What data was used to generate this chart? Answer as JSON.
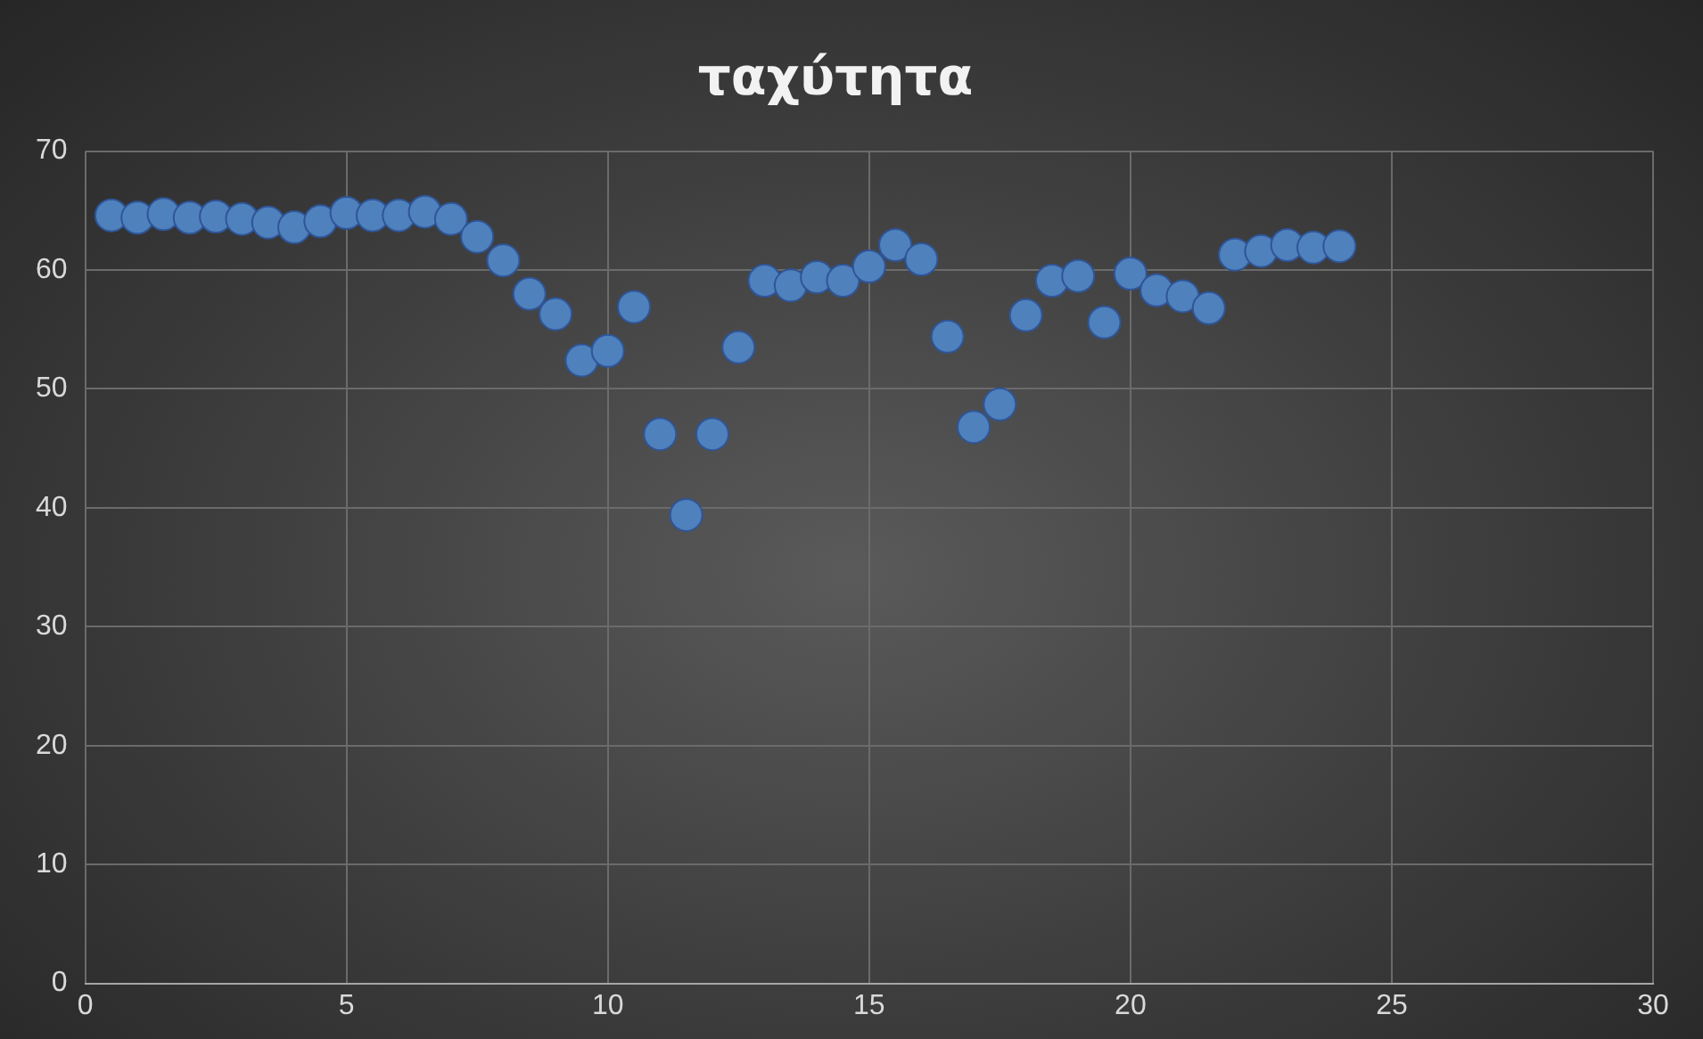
{
  "chart_data": {
    "type": "scatter",
    "title": "ταχύτητα",
    "x": [
      0.5,
      1,
      1.5,
      2,
      2.5,
      3,
      3.5,
      4,
      4.5,
      5,
      5.5,
      6,
      6.5,
      7,
      7.5,
      8,
      8.5,
      9,
      9.5,
      10,
      10.5,
      11,
      11.5,
      12,
      12.5,
      13,
      13.5,
      14,
      14.5,
      15,
      15.5,
      16,
      16.5,
      17,
      17.5,
      18,
      18.5,
      19,
      19.5,
      20,
      20.5,
      21,
      21.5,
      22,
      22.5,
      23,
      23.5,
      24
    ],
    "series": [
      {
        "color": "#4f81bd",
        "values": [
          64.6,
          64.4,
          64.7,
          64.4,
          64.5,
          64.3,
          64.0,
          63.6,
          64.1,
          64.8,
          64.6,
          64.6,
          64.9,
          64.3,
          62.8,
          60.8,
          58.0,
          56.3,
          52.4,
          53.2,
          56.9,
          46.2,
          39.4,
          46.2,
          53.5,
          59.1,
          58.7,
          59.4,
          59.1,
          60.3,
          62.1,
          60.9,
          54.4,
          46.8,
          48.7,
          56.2,
          59.1,
          59.5,
          55.6,
          59.7,
          58.3,
          57.8,
          56.8,
          61.3,
          61.6,
          62.1,
          61.9,
          62.0
        ]
      }
    ],
    "xlim": [
      0,
      30
    ],
    "xticks": [
      0,
      5,
      10,
      15,
      20,
      25,
      30
    ],
    "ylim": [
      0,
      70
    ],
    "yticks": [
      0,
      10,
      20,
      30,
      40,
      50,
      60,
      70
    ],
    "grid": true,
    "legend": false,
    "marker": "circle"
  }
}
